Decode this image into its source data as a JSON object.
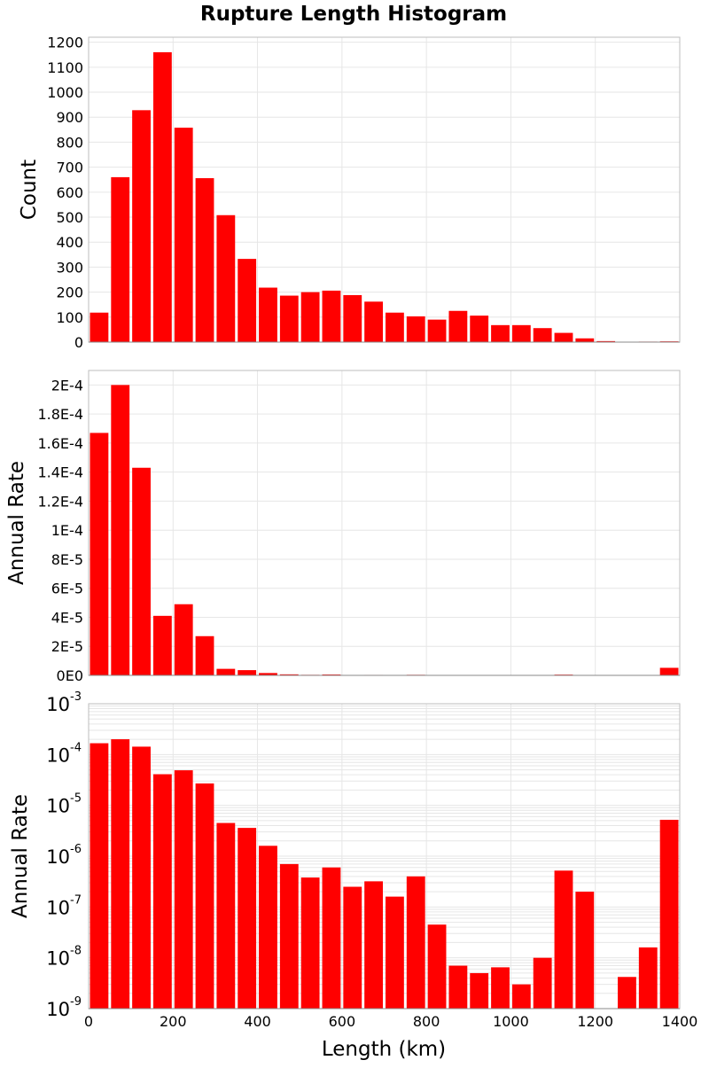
{
  "chart_data": {
    "type": "bar",
    "title": "Rupture Length Histogram",
    "xlabel": "Length (km)",
    "x_ticks": [
      "0",
      "200",
      "400",
      "600",
      "800",
      "1000",
      "1200",
      "1400"
    ],
    "xlim": [
      0,
      1400
    ],
    "bin_width": 50,
    "bin_centers": [
      25,
      75,
      125,
      175,
      225,
      275,
      325,
      375,
      425,
      475,
      525,
      575,
      625,
      675,
      725,
      775,
      825,
      875,
      925,
      975,
      1025,
      1075,
      1125,
      1175,
      1225,
      1275,
      1325,
      1375
    ],
    "color": "#ff0000",
    "panels": [
      {
        "ylabel": "Count",
        "scale": "linear",
        "ylim": [
          0,
          1220
        ],
        "y_ticks": [
          {
            "v": 0,
            "t": "0"
          },
          {
            "v": 100,
            "t": "100"
          },
          {
            "v": 200,
            "t": "200"
          },
          {
            "v": 300,
            "t": "300"
          },
          {
            "v": 400,
            "t": "400"
          },
          {
            "v": 500,
            "t": "500"
          },
          {
            "v": 600,
            "t": "600"
          },
          {
            "v": 700,
            "t": "700"
          },
          {
            "v": 800,
            "t": "800"
          },
          {
            "v": 900,
            "t": "900"
          },
          {
            "v": 1000,
            "t": "1000"
          },
          {
            "v": 1100,
            "t": "1100"
          },
          {
            "v": 1200,
            "t": "1200"
          }
        ],
        "values": [
          118,
          660,
          928,
          1160,
          858,
          656,
          508,
          333,
          218,
          186,
          200,
          206,
          188,
          162,
          118,
          103,
          90,
          125,
          106,
          68,
          68,
          56,
          37,
          15,
          4,
          1,
          2,
          3
        ]
      },
      {
        "ylabel": "Annual Rate",
        "scale": "linear",
        "ylim": [
          0,
          0.00021
        ],
        "y_ticks": [
          {
            "v": 0,
            "t": "0E0"
          },
          {
            "v": 2e-05,
            "t": "2E-5"
          },
          {
            "v": 4e-05,
            "t": "4E-5"
          },
          {
            "v": 6e-05,
            "t": "6E-5"
          },
          {
            "v": 8e-05,
            "t": "8E-5"
          },
          {
            "v": 0.0001,
            "t": "1E-4"
          },
          {
            "v": 0.00012,
            "t": "1.2E-4"
          },
          {
            "v": 0.00014,
            "t": "1.4E-4"
          },
          {
            "v": 0.00016,
            "t": "1.6E-4"
          },
          {
            "v": 0.00018,
            "t": "1.8E-4"
          },
          {
            "v": 0.0002,
            "t": "2E-4"
          }
        ],
        "values": [
          0.000167,
          0.0002,
          0.000143,
          4.1e-05,
          4.9e-05,
          2.7e-05,
          4.5e-06,
          3.6e-06,
          1.6e-06,
          7e-07,
          3.8e-07,
          6e-07,
          2.5e-07,
          3.2e-07,
          1.6e-07,
          4e-07,
          4.5e-08,
          7e-09,
          5e-09,
          6.5e-09,
          3e-09,
          1e-08,
          5.2e-07,
          2e-07,
          0,
          4.2e-09,
          1.6e-08,
          5.2e-06
        ]
      },
      {
        "ylabel": "Annual Rate",
        "scale": "log",
        "ylim": [
          1e-09,
          0.001
        ],
        "y_ticks": [
          {
            "v": 1e-09,
            "base": "10",
            "exp": "-9"
          },
          {
            "v": 1e-08,
            "base": "10",
            "exp": "-8"
          },
          {
            "v": 1e-07,
            "base": "10",
            "exp": "-7"
          },
          {
            "v": 1e-06,
            "base": "10",
            "exp": "-6"
          },
          {
            "v": 1e-05,
            "base": "10",
            "exp": "-5"
          },
          {
            "v": 0.0001,
            "base": "10",
            "exp": "-4"
          },
          {
            "v": 0.001,
            "base": "10",
            "exp": "-3"
          }
        ],
        "values": [
          0.000167,
          0.0002,
          0.000143,
          4.1e-05,
          4.9e-05,
          2.7e-05,
          4.5e-06,
          3.6e-06,
          1.6e-06,
          7e-07,
          3.8e-07,
          6e-07,
          2.5e-07,
          3.2e-07,
          1.6e-07,
          4e-07,
          4.5e-08,
          7e-09,
          5e-09,
          6.5e-09,
          3e-09,
          1e-08,
          5.2e-07,
          2e-07,
          0,
          4.2e-09,
          1.6e-08,
          5.2e-06
        ]
      }
    ]
  }
}
